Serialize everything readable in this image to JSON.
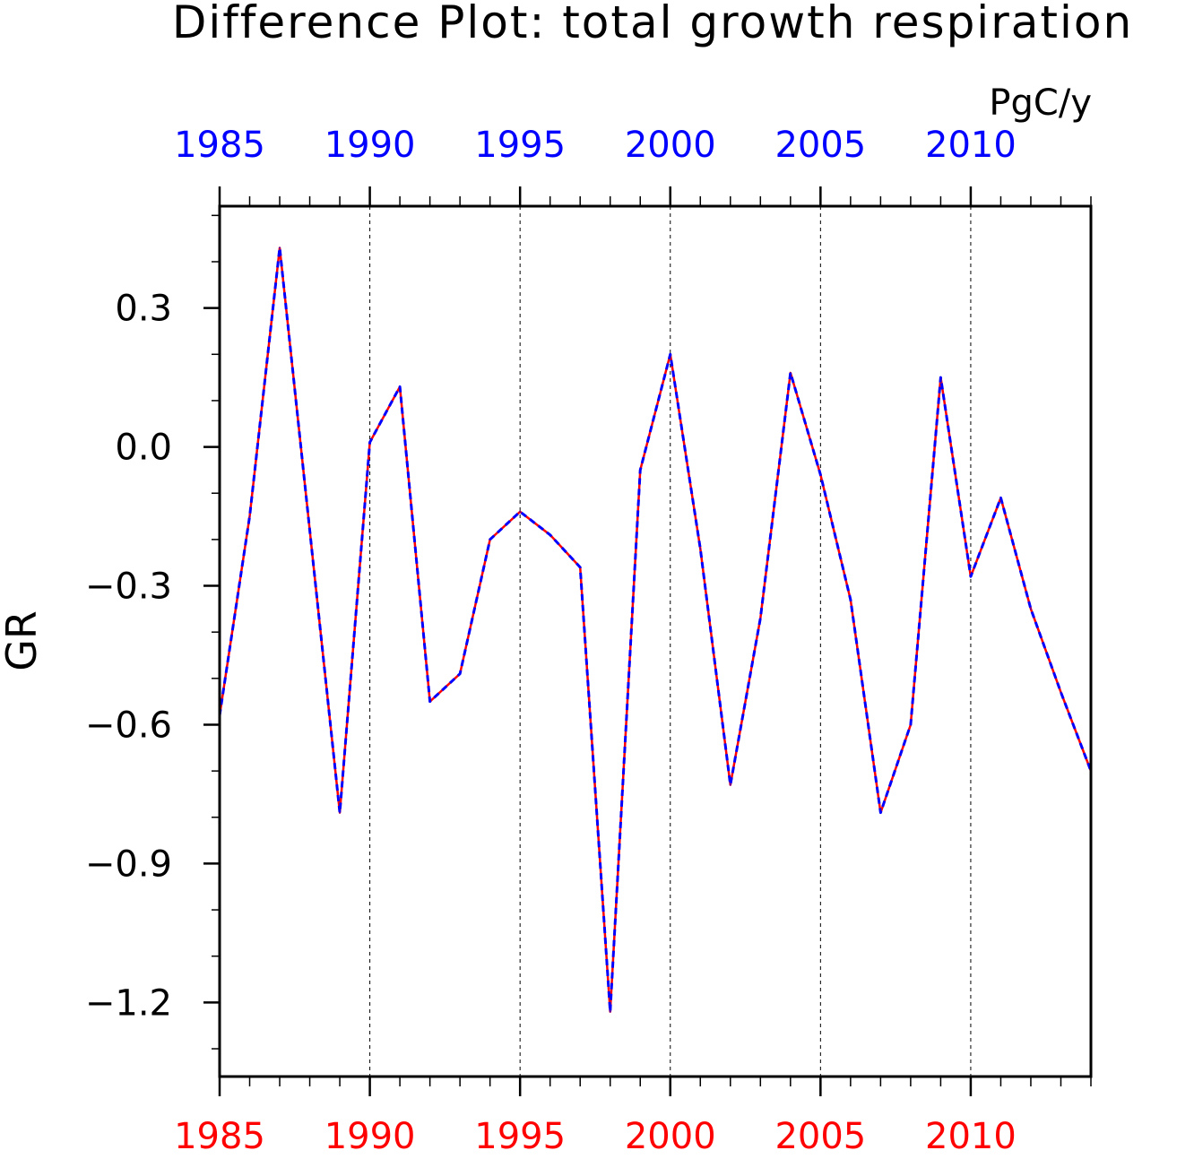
{
  "chart_data": {
    "type": "line",
    "title": "Difference Plot: total growth respiration",
    "units": "PgC/y",
    "ylabel": "GR",
    "xlabel": "",
    "xlim": [
      1985,
      2014
    ],
    "ylim": [
      -1.36,
      0.52
    ],
    "x_ticks": [
      "1985",
      "1990",
      "1995",
      "2000",
      "2005",
      "2010"
    ],
    "y_ticks": [
      "0.3",
      "0.0",
      "−0.3",
      "−0.6",
      "−0.9",
      "−1.2"
    ],
    "grid": "vertical dashed at major x ticks",
    "x": [
      1985,
      1986,
      1987,
      1988,
      1989,
      1990,
      1991,
      1992,
      1993,
      1994,
      1995,
      1996,
      1997,
      1998,
      1999,
      2000,
      2001,
      2002,
      2003,
      2004,
      2005,
      2006,
      2007,
      2008,
      2009,
      2010,
      2011,
      2012,
      2013,
      2014
    ],
    "series": [
      {
        "color": "#ff0000",
        "dash": "solid",
        "values": [
          -0.58,
          -0.15,
          0.43,
          -0.18,
          -0.79,
          0.01,
          0.13,
          -0.55,
          -0.49,
          -0.2,
          -0.14,
          -0.19,
          -0.26,
          -1.22,
          -0.05,
          0.2,
          -0.22,
          -0.73,
          -0.37,
          0.16,
          -0.06,
          -0.33,
          -0.79,
          -0.6,
          0.15,
          -0.28,
          -0.11,
          -0.35,
          -0.53,
          -0.7
        ]
      },
      {
        "color": "#0000ff",
        "dash": "dashed",
        "values": [
          -0.58,
          -0.15,
          0.43,
          -0.18,
          -0.79,
          0.01,
          0.13,
          -0.55,
          -0.49,
          -0.2,
          -0.14,
          -0.19,
          -0.26,
          -1.22,
          -0.05,
          0.2,
          -0.22,
          -0.73,
          -0.37,
          0.16,
          -0.06,
          -0.33,
          -0.79,
          -0.6,
          0.15,
          -0.28,
          -0.11,
          -0.35,
          -0.53,
          -0.7
        ]
      }
    ],
    "colors": {
      "axis": "#000000",
      "top_tick_labels": "#0000ff",
      "bottom_tick_labels": "#ff0000"
    }
  }
}
